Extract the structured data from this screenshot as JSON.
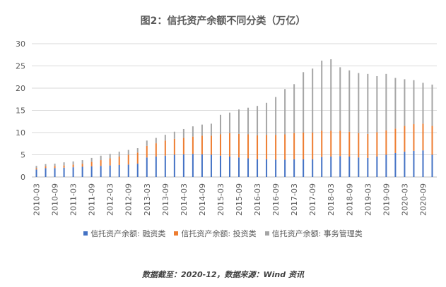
{
  "chart_data": {
    "type": "bar",
    "stacked": true,
    "title": "图2：信托资产余额不同分类（万亿）",
    "ylim": [
      0,
      30
    ],
    "yticks": [
      "0",
      "5",
      "10",
      "15",
      "20",
      "25",
      "30"
    ],
    "x": [
      "2010-03",
      "2010-06",
      "2010-09",
      "2010-12",
      "2011-03",
      "2011-06",
      "2011-09",
      "2011-12",
      "2012-03",
      "2012-06",
      "2012-09",
      "2012-12",
      "2013-03",
      "2013-06",
      "2013-09",
      "2013-12",
      "2014-03",
      "2014-06",
      "2014-09",
      "2014-12",
      "2015-03",
      "2015-06",
      "2015-09",
      "2015-12",
      "2016-03",
      "2016-06",
      "2016-09",
      "2016-12",
      "2017-03",
      "2017-06",
      "2017-09",
      "2017-12",
      "2018-03",
      "2018-06",
      "2018-09",
      "2018-12",
      "2019-03",
      "2019-06",
      "2019-09",
      "2019-12",
      "2020-03",
      "2020-06",
      "2020-09",
      "2020-12"
    ],
    "xtick_labels": [
      "2010-03",
      "2010-09",
      "2011-03",
      "2011-09",
      "2012-03",
      "2012-09",
      "2013-03",
      "2013-09",
      "2014-03",
      "2014-09",
      "2015-03",
      "2015-09",
      "2016-03",
      "2016-09",
      "2017-03",
      "2017-09",
      "2018-03",
      "2018-09",
      "2019-03",
      "2019-09",
      "2020-03",
      "2020-09"
    ],
    "series": [
      {
        "name": "信托资产余额: 融资类",
        "color": "#4472C4",
        "values": [
          1.7,
          2.0,
          2.0,
          2.1,
          2.2,
          2.3,
          2.4,
          2.5,
          2.6,
          2.7,
          2.8,
          3.0,
          4.4,
          4.6,
          4.8,
          5.0,
          5.1,
          5.2,
          5.1,
          5.0,
          4.8,
          4.6,
          4.4,
          4.2,
          4.0,
          4.0,
          3.9,
          3.9,
          4.0,
          4.0,
          4.0,
          4.5,
          4.6,
          4.7,
          4.6,
          4.4,
          4.3,
          4.6,
          5.0,
          5.4,
          5.7,
          5.9,
          6.0,
          5.0
        ]
      },
      {
        "name": "信托资产余额: 投资类",
        "color": "#ED7D31",
        "values": [
          0.3,
          0.4,
          0.5,
          0.5,
          0.6,
          0.7,
          1.0,
          1.3,
          1.6,
          1.9,
          2.2,
          2.5,
          2.6,
          3.0,
          3.4,
          3.6,
          3.7,
          3.9,
          4.2,
          4.3,
          4.8,
          5.3,
          5.3,
          5.4,
          5.4,
          5.5,
          5.6,
          5.7,
          5.9,
          6.0,
          6.0,
          5.9,
          5.8,
          5.7,
          5.6,
          5.5,
          5.4,
          5.5,
          5.5,
          5.5,
          5.8,
          6.0,
          6.0,
          6.5
        ]
      },
      {
        "name": "信托资产余额: 事务管理类",
        "color": "#A5A5A5",
        "values": [
          0.5,
          0.5,
          0.5,
          0.7,
          0.7,
          0.8,
          0.9,
          1.0,
          1.0,
          1.1,
          1.1,
          1.0,
          1.2,
          1.2,
          1.3,
          1.6,
          2.0,
          2.3,
          2.5,
          2.7,
          4.4,
          4.6,
          5.5,
          6.0,
          6.6,
          7.2,
          8.5,
          10.2,
          11.0,
          13.6,
          14.4,
          15.8,
          16.1,
          14.3,
          13.8,
          13.5,
          13.5,
          12.6,
          12.7,
          11.4,
          10.5,
          9.9,
          9.2,
          9.3
        ]
      }
    ]
  },
  "source_note": "数据截至：2020-12，数据来源：Wind 资讯"
}
